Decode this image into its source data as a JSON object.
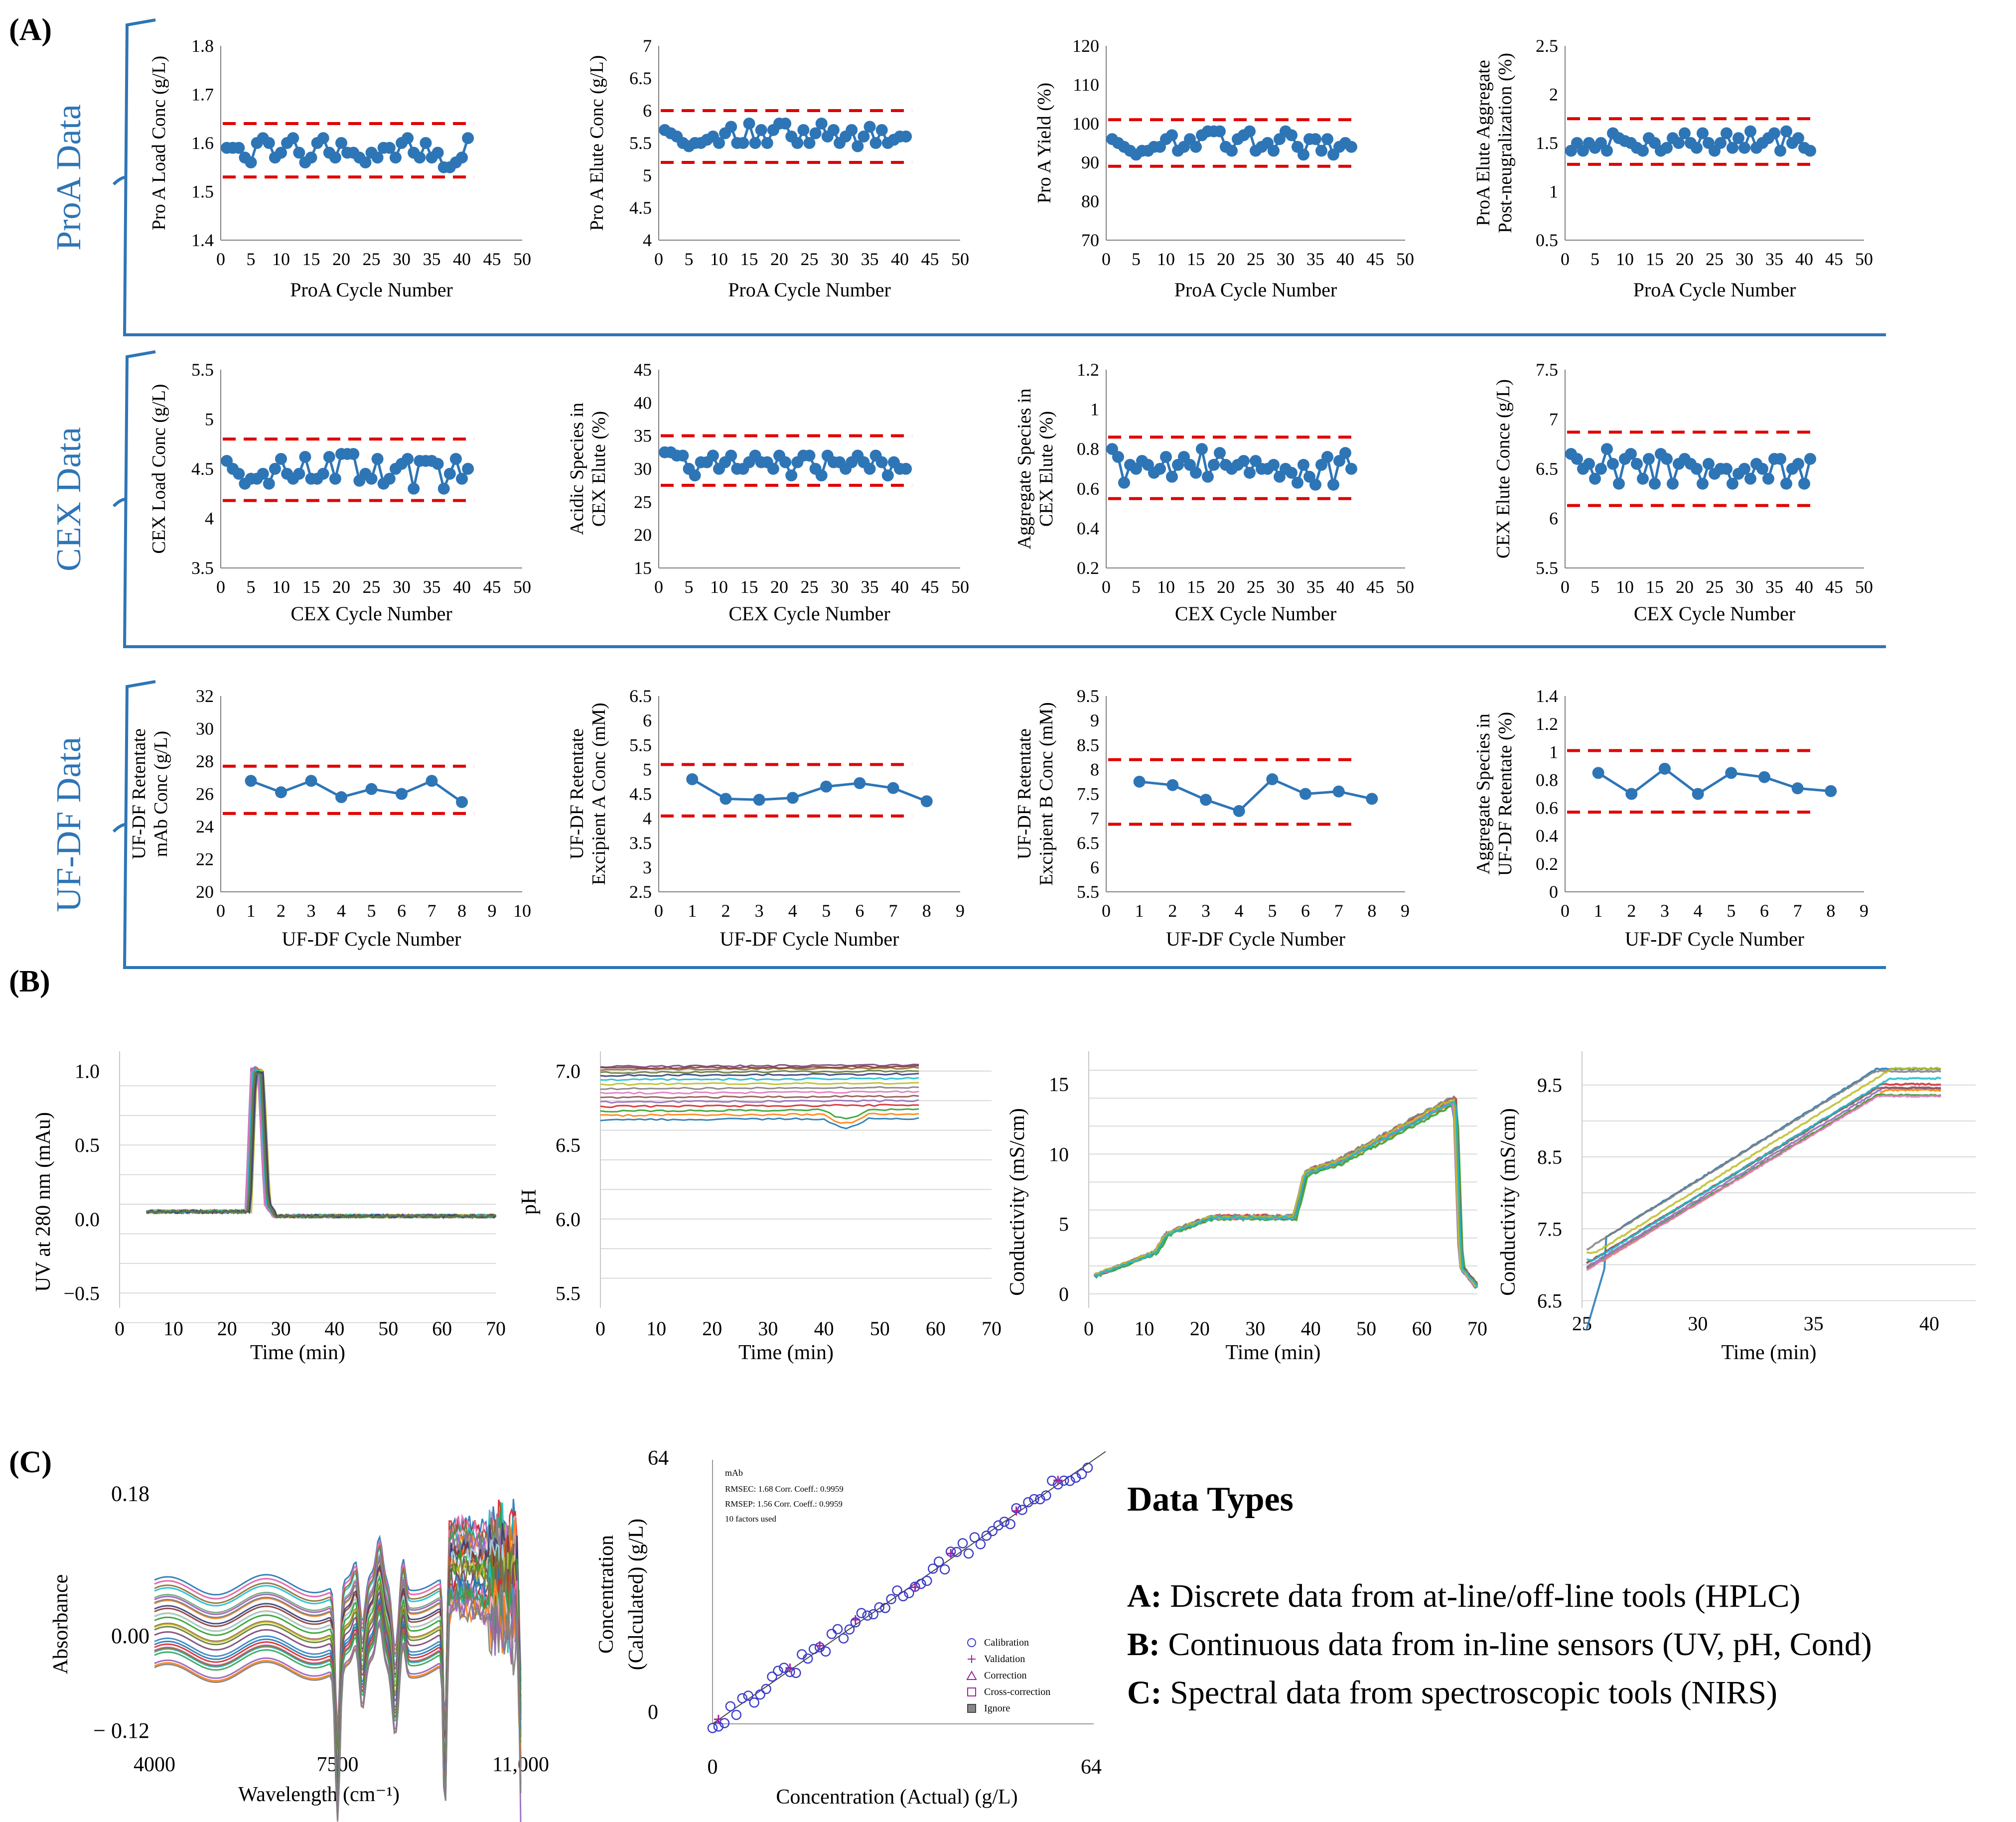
{
  "panel_labels": {
    "a": "(A)",
    "b": "(B)",
    "c": "(C)"
  },
  "group_labels": {
    "proa": "ProA Data",
    "cex": "CEX Data",
    "ufdf": "UF-DF Data"
  },
  "colors": {
    "accent": "#2e75b6",
    "limit": "#e00000",
    "grid": "#d9d9d9",
    "axis": "#7f7f7f",
    "text": "#000000"
  },
  "data_types": {
    "title": "Data Types",
    "items": [
      {
        "key": "A:",
        "text": " Discrete data from at-line/off-line tools (HPLC)"
      },
      {
        "key": "B:",
        "text": " Continuous data from in-line sensors (UV, pH, Cond)"
      },
      {
        "key": "C:",
        "text": " Spectral data from spectroscopic tools (NIRS)"
      }
    ]
  },
  "chart_data": [
    {
      "id": "a1",
      "type": "line",
      "ylabel": [
        "Pro A Load Conc (g/L)"
      ],
      "xlabel": "ProA Cycle Number",
      "xlim": [
        0,
        50
      ],
      "xticks": [
        0,
        5,
        10,
        15,
        20,
        25,
        30,
        35,
        40,
        45,
        50
      ],
      "ylim": [
        1.4,
        1.8
      ],
      "yticks": [
        1.4,
        1.5,
        1.6,
        1.7,
        1.8
      ],
      "limits": [
        1.53,
        1.64
      ],
      "values": [
        1.59,
        1.59,
        1.59,
        1.57,
        1.56,
        1.6,
        1.61,
        1.6,
        1.57,
        1.58,
        1.6,
        1.61,
        1.58,
        1.56,
        1.57,
        1.6,
        1.61,
        1.58,
        1.57,
        1.6,
        1.58,
        1.58,
        1.57,
        1.56,
        1.58,
        1.57,
        1.59,
        1.59,
        1.57,
        1.6,
        1.61,
        1.58,
        1.57,
        1.6,
        1.57,
        1.58,
        1.55,
        1.55,
        1.56,
        1.57,
        1.61
      ]
    },
    {
      "id": "a2",
      "type": "line",
      "ylabel": [
        "Pro A Elute Conc (g/L)"
      ],
      "xlabel": "ProA Cycle Number",
      "xlim": [
        0,
        50
      ],
      "xticks": [
        0,
        5,
        10,
        15,
        20,
        25,
        30,
        35,
        40,
        45,
        50
      ],
      "ylim": [
        4,
        7
      ],
      "yticks": [
        "4",
        "4.5",
        "5",
        "5.5",
        "6",
        "6.5",
        "7"
      ],
      "limits": [
        5.2,
        6.0
      ],
      "values": [
        5.7,
        5.65,
        5.6,
        5.5,
        5.45,
        5.5,
        5.5,
        5.55,
        5.6,
        5.5,
        5.65,
        5.75,
        5.5,
        5.5,
        5.8,
        5.5,
        5.7,
        5.5,
        5.7,
        5.8,
        5.8,
        5.6,
        5.5,
        5.7,
        5.5,
        5.65,
        5.8,
        5.6,
        5.7,
        5.5,
        5.6,
        5.7,
        5.45,
        5.6,
        5.75,
        5.5,
        5.7,
        5.5,
        5.55,
        5.6,
        5.6
      ]
    },
    {
      "id": "a3",
      "type": "line",
      "ylabel": [
        "Pro A Yield (%)"
      ],
      "xlabel": "ProA Cycle Number",
      "xlim": [
        0,
        50
      ],
      "xticks": [
        0,
        5,
        10,
        15,
        20,
        25,
        30,
        35,
        40,
        45,
        50
      ],
      "ylim": [
        70,
        120
      ],
      "yticks": [
        70,
        80,
        90,
        100,
        110,
        120
      ],
      "limits": [
        89,
        101
      ],
      "values": [
        96,
        95,
        94,
        93,
        92,
        93,
        93,
        94,
        94,
        96,
        97,
        93,
        94,
        96,
        94,
        97,
        98,
        98,
        98,
        94,
        93,
        96,
        97,
        98,
        93,
        94,
        95,
        93,
        96,
        98,
        97,
        94,
        92,
        96,
        96,
        93,
        96,
        92,
        94,
        95,
        94
      ]
    },
    {
      "id": "a4",
      "type": "line",
      "ylabel": [
        "ProA Elute Aggregate",
        "Post-neugralization (%)"
      ],
      "xlabel": "ProA Cycle Number",
      "xlim": [
        0,
        50
      ],
      "xticks": [
        0,
        5,
        10,
        15,
        20,
        25,
        30,
        35,
        40,
        45,
        50
      ],
      "ylim": [
        0.5,
        2.5
      ],
      "yticks": [
        "0.5",
        "1",
        "1.5",
        "2",
        "2.5"
      ],
      "limits": [
        1.28,
        1.75
      ],
      "values": [
        1.42,
        1.5,
        1.42,
        1.5,
        1.45,
        1.5,
        1.42,
        1.6,
        1.55,
        1.52,
        1.5,
        1.45,
        1.42,
        1.55,
        1.5,
        1.42,
        1.45,
        1.55,
        1.5,
        1.6,
        1.5,
        1.45,
        1.6,
        1.5,
        1.42,
        1.5,
        1.6,
        1.45,
        1.55,
        1.45,
        1.62,
        1.45,
        1.5,
        1.55,
        1.6,
        1.42,
        1.62,
        1.5,
        1.55,
        1.45,
        1.42
      ]
    },
    {
      "id": "a5",
      "type": "line",
      "ylabel": [
        "CEX Load Conc (g/L)"
      ],
      "xlabel": "CEX Cycle Number",
      "xlim": [
        0,
        50
      ],
      "xticks": [
        0,
        5,
        10,
        15,
        20,
        25,
        30,
        35,
        40,
        45,
        50
      ],
      "ylim": [
        3.5,
        5.5
      ],
      "yticks": [
        "3.5",
        "4",
        "4.5",
        "5",
        "5.5"
      ],
      "limits": [
        4.18,
        4.8
      ],
      "values": [
        4.58,
        4.5,
        4.45,
        4.35,
        4.4,
        4.4,
        4.45,
        4.35,
        4.5,
        4.6,
        4.45,
        4.4,
        4.45,
        4.62,
        4.4,
        4.4,
        4.45,
        4.62,
        4.4,
        4.65,
        4.65,
        4.65,
        4.38,
        4.45,
        4.4,
        4.6,
        4.35,
        4.4,
        4.5,
        4.55,
        4.6,
        4.3,
        4.58,
        4.58,
        4.58,
        4.55,
        4.3,
        4.45,
        4.6,
        4.4,
        4.5
      ]
    },
    {
      "id": "a6",
      "type": "line",
      "ylabel": [
        "Acidic Species in",
        "CEX Elute (%)"
      ],
      "xlabel": "CEX Cycle Number",
      "xlim": [
        0,
        50
      ],
      "xticks": [
        0,
        5,
        10,
        15,
        20,
        25,
        30,
        35,
        40,
        45,
        50
      ],
      "ylim": [
        15,
        45
      ],
      "yticks": [
        15,
        20,
        25,
        30,
        35,
        40,
        45
      ],
      "limits": [
        27.5,
        35
      ],
      "values": [
        32.5,
        32.5,
        32,
        32,
        30,
        29,
        31,
        31,
        32,
        30,
        31,
        32,
        30,
        30,
        31,
        32,
        31,
        31,
        30,
        32,
        31,
        29,
        31,
        32,
        32,
        30,
        29,
        32,
        31,
        31,
        30,
        31,
        32,
        31,
        30,
        32,
        31,
        29,
        31,
        30,
        30
      ]
    },
    {
      "id": "a7",
      "type": "line",
      "ylabel": [
        "Aggregate Species in",
        "CEX Elute (%)"
      ],
      "xlabel": "CEX Cycle Number",
      "xlim": [
        0,
        50
      ],
      "xticks": [
        0,
        5,
        10,
        15,
        20,
        25,
        30,
        35,
        40,
        45,
        50
      ],
      "ylim": [
        0.2,
        1.2
      ],
      "yticks": [
        "0.2",
        "0.4",
        "0.6",
        "0.8",
        "1",
        "1.2"
      ],
      "limits": [
        0.55,
        0.86
      ],
      "values": [
        0.8,
        0.76,
        0.63,
        0.72,
        0.7,
        0.74,
        0.72,
        0.68,
        0.7,
        0.76,
        0.66,
        0.72,
        0.76,
        0.72,
        0.68,
        0.8,
        0.66,
        0.72,
        0.78,
        0.72,
        0.7,
        0.72,
        0.74,
        0.68,
        0.74,
        0.7,
        0.7,
        0.72,
        0.66,
        0.7,
        0.68,
        0.63,
        0.72,
        0.66,
        0.62,
        0.72,
        0.76,
        0.62,
        0.74,
        0.78,
        0.7
      ]
    },
    {
      "id": "a8",
      "type": "line",
      "ylabel": [
        "CEX Elute Conce (g/L)"
      ],
      "xlabel": "CEX Cycle Number",
      "xlim": [
        0,
        50
      ],
      "xticks": [
        0,
        5,
        10,
        15,
        20,
        25,
        30,
        35,
        40,
        45,
        50
      ],
      "ylim": [
        5.5,
        7.5
      ],
      "yticks": [
        "5.5",
        "6",
        "6.5",
        "7",
        "7.5"
      ],
      "limits": [
        6.13,
        6.87
      ],
      "values": [
        6.65,
        6.6,
        6.5,
        6.55,
        6.4,
        6.5,
        6.7,
        6.55,
        6.35,
        6.6,
        6.65,
        6.55,
        6.4,
        6.6,
        6.35,
        6.65,
        6.6,
        6.35,
        6.55,
        6.6,
        6.55,
        6.5,
        6.35,
        6.55,
        6.45,
        6.5,
        6.5,
        6.35,
        6.45,
        6.5,
        6.4,
        6.55,
        6.5,
        6.4,
        6.6,
        6.6,
        6.35,
        6.5,
        6.55,
        6.35,
        6.6
      ]
    },
    {
      "id": "a9",
      "type": "line",
      "ylabel": [
        "UF-DF Retentate",
        "mAb Conc (g/L)"
      ],
      "xlabel": "UF-DF Cycle Number",
      "xlim": [
        0,
        10
      ],
      "xticks": [
        0,
        1,
        2,
        3,
        4,
        5,
        6,
        7,
        8,
        9,
        10
      ],
      "ylim": [
        20,
        32
      ],
      "yticks": [
        20,
        22,
        24,
        26,
        28,
        30,
        32
      ],
      "limits": [
        24.8,
        27.7
      ],
      "x": [
        1,
        2,
        3,
        4,
        5,
        6,
        7,
        8
      ],
      "values": [
        26.8,
        26.1,
        26.8,
        25.8,
        26.3,
        26.0,
        26.8,
        25.5
      ]
    },
    {
      "id": "a10",
      "type": "line",
      "ylabel": [
        "UF-DF Retentate",
        "Excipient A Conc (mM)"
      ],
      "xlabel": "UF-DF Cycle Number",
      "xlim": [
        0,
        9
      ],
      "xticks": [
        0,
        1,
        2,
        3,
        4,
        5,
        6,
        7,
        8,
        9
      ],
      "ylim": [
        2.5,
        6.5
      ],
      "yticks": [
        "2.5",
        "3",
        "3.5",
        "4",
        "4.5",
        "5",
        "5.5",
        "6",
        "6.5"
      ],
      "limits": [
        4.05,
        5.1
      ],
      "x": [
        1,
        2,
        3,
        4,
        5,
        6,
        7,
        8
      ],
      "values": [
        4.8,
        4.4,
        4.38,
        4.42,
        4.65,
        4.72,
        4.62,
        4.35
      ]
    },
    {
      "id": "a11",
      "type": "line",
      "ylabel": [
        "UF-DF Retentate",
        "Excipient B Conc (mM)"
      ],
      "xlabel": "UF-DF Cycle Number",
      "xlim": [
        0,
        9
      ],
      "xticks": [
        0,
        1,
        2,
        3,
        4,
        5,
        6,
        7,
        8,
        9
      ],
      "ylim": [
        5.5,
        9.5
      ],
      "yticks": [
        "5.5",
        "6",
        "6.5",
        "7",
        "7.5",
        "8",
        "8.5",
        "9",
        "9.5"
      ],
      "limits": [
        6.88,
        8.2
      ],
      "x": [
        1,
        2,
        3,
        4,
        5,
        6,
        7,
        8
      ],
      "values": [
        7.75,
        7.68,
        7.38,
        7.15,
        7.8,
        7.5,
        7.55,
        7.4
      ]
    },
    {
      "id": "a12",
      "type": "line",
      "ylabel": [
        "Aggregate Species in",
        "UF-DF Retentate (%)"
      ],
      "xlabel": "UF-DF Cycle Number",
      "xlim": [
        0,
        9
      ],
      "xticks": [
        0,
        1,
        2,
        3,
        4,
        5,
        6,
        7,
        8,
        9
      ],
      "ylim": [
        0,
        1.4
      ],
      "yticks": [
        "0",
        "0.2",
        "0.4",
        "0.6",
        "0.8",
        "1",
        "1.2",
        "1.4"
      ],
      "limits": [
        0.57,
        1.01
      ],
      "x": [
        1,
        2,
        3,
        4,
        5,
        6,
        7,
        8
      ],
      "values": [
        0.85,
        0.7,
        0.88,
        0.7,
        0.85,
        0.82,
        0.74,
        0.72
      ]
    },
    {
      "id": "b1",
      "type": "line",
      "ylabel": "UV at 280 nm (mAu)",
      "xlabel": "Time (min)",
      "xlim": [
        0,
        70
      ],
      "xticks": [
        0,
        10,
        20,
        30,
        40,
        50,
        60,
        70
      ],
      "ylim": [
        -0.6,
        1.1
      ],
      "yticks": [
        "−0.5",
        "0.0",
        "0.5",
        "1.0"
      ],
      "ytick_values": [
        -0.5,
        0,
        0.5,
        1.0
      ],
      "grid_values": [
        -0.7,
        -0.5,
        -0.3,
        -0.1,
        0.1,
        0.3,
        0.5,
        0.7,
        0.9
      ],
      "series_profile": {
        "x": [
          5,
          24,
          25,
          26.3,
          27.5,
          29,
          70
        ],
        "y": [
          0.05,
          0.05,
          1.0,
          1.0,
          0.1,
          0.02,
          0.02
        ]
      },
      "series_count": 12
    },
    {
      "id": "b2",
      "type": "line",
      "ylabel": "pH",
      "xlabel": "Time (min)",
      "xlim": [
        0,
        70
      ],
      "xticks": [
        0,
        10,
        20,
        30,
        40,
        50,
        60,
        70
      ],
      "ylim": [
        5.4,
        7.1
      ],
      "yticks": [
        "5.5",
        "6.0",
        "6.5",
        "7.0"
      ],
      "ytick_values": [
        5.5,
        6.0,
        6.5,
        7.0
      ],
      "grid_values": [
        5.6,
        5.8,
        6.0,
        6.2,
        6.4,
        6.6,
        6.8,
        7.0
      ],
      "series_levels": [
        6.67,
        6.7,
        6.73,
        6.76,
        6.79,
        6.82,
        6.85,
        6.88,
        6.91,
        6.94,
        6.97,
        6.99,
        7.01,
        7.02,
        7.03
      ],
      "x_range": [
        0,
        57
      ]
    },
    {
      "id": "b3",
      "type": "line",
      "ylabel": "Conductivity (mS/cm)",
      "xlabel": "Time (min)",
      "xlim": [
        0,
        70
      ],
      "xticks": [
        0,
        10,
        20,
        30,
        40,
        50,
        60,
        70
      ],
      "ylim": [
        -1,
        17
      ],
      "yticks": [
        "0",
        "5",
        "10",
        "15"
      ],
      "ytick_values": [
        0,
        5,
        10,
        15
      ],
      "grid_values": [
        0,
        2,
        4,
        6,
        8,
        10,
        12,
        14,
        16
      ],
      "series_profile": {
        "x": [
          1,
          12,
          14,
          22,
          37,
          38,
          39,
          45,
          65,
          66,
          67,
          70
        ],
        "y": [
          1.3,
          3,
          4.3,
          5.5,
          5.5,
          7,
          8.7,
          9.5,
          13.8,
          13.8,
          2,
          0.5
        ]
      },
      "series_count": 10
    },
    {
      "id": "b4",
      "type": "line",
      "ylabel": "Conductivity (mS/cm)",
      "xlabel": "Time (min)",
      "xlim": [
        25,
        42
      ],
      "xticks": [
        25,
        30,
        35,
        40
      ],
      "ylim": [
        6.4,
        9.9
      ],
      "yticks": [
        "6.5",
        "7.5",
        "8.5",
        "9.5"
      ],
      "ytick_values": [
        6.5,
        7.5,
        8.5,
        9.5
      ],
      "grid_values": [
        6.5,
        7.0,
        7.5,
        8.0,
        8.5,
        9.0,
        9.5
      ],
      "series_profile": {
        "x": [
          25.2,
          38,
          40.5
        ],
        "y": [
          7.0,
          9.5,
          9.5
        ]
      },
      "series_count": 10
    },
    {
      "id": "c1",
      "type": "line",
      "ylabel": "Absorbance",
      "xlabel": "Wavelength (cm⁻¹)",
      "xlim": [
        4000,
        11000
      ],
      "xticks": [
        "4000",
        "7500",
        "11,000"
      ],
      "xtick_values": [
        4000,
        7500,
        11000
      ],
      "ylim": [
        -0.13,
        0.22
      ],
      "yticks": [
        "0.18",
        "0.00",
        "− 0.12"
      ],
      "ytick_values": [
        0.18,
        0.0,
        -0.12
      ],
      "series_count": 30
    },
    {
      "id": "c2",
      "type": "scatter",
      "title": "mAb",
      "ylabel": [
        "Concentration",
        "(Calculated) (g/L)"
      ],
      "xlabel": "Concentration (Actual) (g/L)",
      "xlim": [
        0,
        64
      ],
      "ylim": [
        0,
        64
      ],
      "xticks": [
        "0",
        "64"
      ],
      "yticks": [
        "0",
        "64"
      ],
      "stats": [
        "RMSEC:  1.68    Corr. Coeff.: 0.9959",
        "RMSEP:  1.56    Corr. Coeff.: 0.9959",
        "10 factors used"
      ],
      "legend": [
        "Calibration",
        "Validation",
        "Correction",
        "Cross-correction",
        "Ignore"
      ],
      "calibration_x": [
        0,
        1,
        2,
        3,
        4,
        5,
        6,
        7,
        8,
        9,
        10,
        11,
        12,
        13,
        14,
        15,
        16,
        17,
        18,
        19,
        20,
        21,
        22,
        23,
        24,
        25,
        26,
        27,
        28,
        29,
        30,
        31,
        32,
        33,
        34,
        35,
        36,
        37,
        38,
        39,
        40,
        41,
        42,
        43,
        44,
        45,
        46,
        47,
        48,
        49,
        50,
        51,
        52,
        53,
        54,
        55,
        56,
        57,
        58,
        59,
        60,
        61,
        62,
        63
      ],
      "validation_x": [
        1,
        13,
        18,
        24,
        34,
        40,
        51,
        58
      ]
    }
  ]
}
